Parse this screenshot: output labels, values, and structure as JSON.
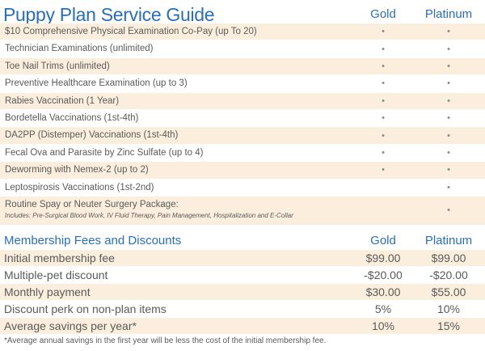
{
  "service_guide": {
    "title": "Puppy Plan Service Guide",
    "columns": [
      "Gold",
      "Platinum"
    ],
    "rows": [
      {
        "label": "$10 Comprehensive Physical Examination Co-Pay (up To 20)",
        "gold": "•",
        "platinum": "•"
      },
      {
        "label": "Technician Examinations (unlimited)",
        "gold": "•",
        "platinum": "•"
      },
      {
        "label": "Toe Nail Trims (unlimited)",
        "gold": "•",
        "platinum": "•"
      },
      {
        "label": "Preventive Healthcare Examination (up to 3)",
        "gold": "•",
        "platinum": "•"
      },
      {
        "label": "Rabies Vaccination (1 Year)",
        "gold": "•",
        "platinum": "•"
      },
      {
        "label": "Bordetella Vaccinations (1st-4th)",
        "gold": "•",
        "platinum": "•"
      },
      {
        "label": "DA2PP (Distemper) Vaccinations (1st-4th)",
        "gold": "•",
        "platinum": "•"
      },
      {
        "label": "Fecal Ova and Parasite by Zinc Sulfate (up to 4)",
        "gold": "•",
        "platinum": "•"
      },
      {
        "label": "Deworming with Nemex-2 (up to 2)",
        "gold": "•",
        "platinum": "•"
      },
      {
        "label": "Leptospirosis Vaccinations (1st-2nd)",
        "gold": "",
        "platinum": "•"
      },
      {
        "label": "Routine Spay or Neuter Surgery Package:",
        "note": "Includes: Pre-Surgical Blood Work, IV Fluid Therapy, Pain Management, Hospitalization and E-Collar",
        "gold": "",
        "platinum": "•"
      }
    ]
  },
  "fees": {
    "title": "Membership Fees and Discounts",
    "columns": [
      "Gold",
      "Platinum"
    ],
    "rows": [
      {
        "label": "Initial membership fee",
        "gold": "$99.00",
        "platinum": "$99.00"
      },
      {
        "label": "Multiple-pet discount",
        "gold": "-$20.00",
        "platinum": "-$20.00"
      },
      {
        "label": "Monthly payment",
        "gold": "$30.00",
        "platinum": "$55.00"
      },
      {
        "label": "Discount perk on non-plan items",
        "gold": "5%",
        "platinum": "10%"
      },
      {
        "label": "Average savings per year*",
        "gold": "10%",
        "platinum": "15%"
      }
    ],
    "footnote": "*Average annual savings in the first year will be less the cost of the initial membership fee."
  },
  "colors": {
    "heading": "#2a6fb5",
    "row_alt": "#fbeedd",
    "text": "#5a5a5a"
  }
}
